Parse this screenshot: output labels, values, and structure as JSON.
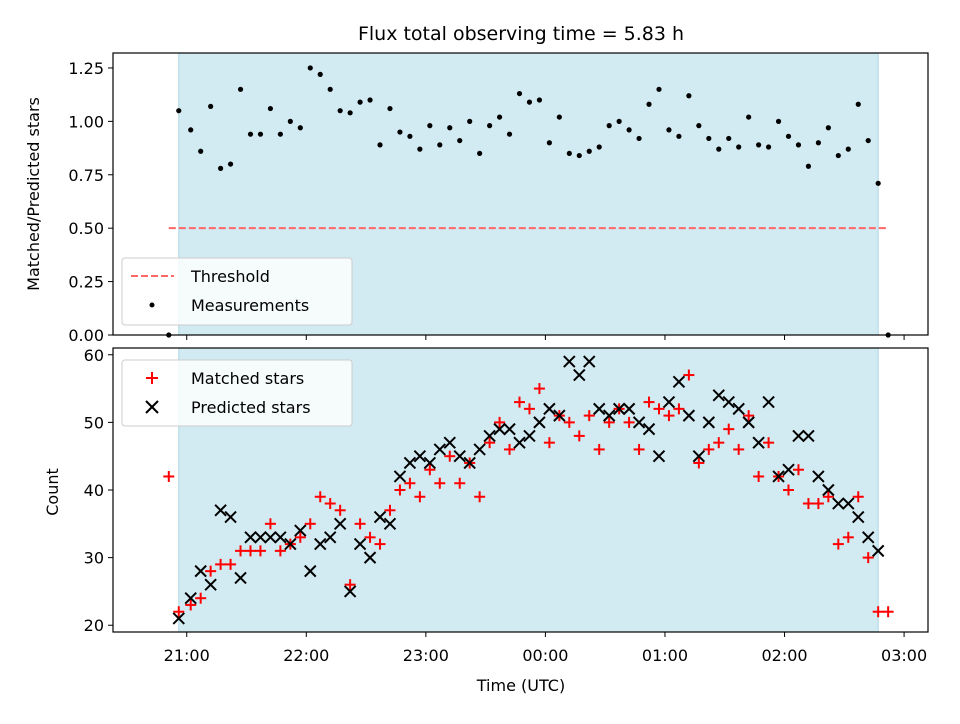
{
  "title": "Flux total observing time = 5.83 h",
  "colors": {
    "observing_band": "#add8e6",
    "threshold": "#ff6666",
    "measurements": "#000000",
    "matched": "#ff0000",
    "predicted": "#000000"
  },
  "chart_data": [
    {
      "type": "scatter",
      "panel": "top",
      "title": "Flux total observing time = 5.83 h",
      "xlabel": "",
      "ylabel": "Matched/Predicted stars",
      "xlim": [
        "20:23",
        "03:12"
      ],
      "ylim": [
        0,
        1.32
      ],
      "x_ticks": [
        "21:00",
        "22:00",
        "23:00",
        "00:00",
        "01:00",
        "02:00",
        "03:00"
      ],
      "y_ticks": [
        "0.00",
        "0.25",
        "0.50",
        "0.75",
        "1.00",
        "1.25"
      ],
      "observing_band": [
        "20:56",
        "02:47"
      ],
      "threshold": {
        "name": "Threshold",
        "y": 0.5,
        "x_range": [
          "20:51",
          "02:52"
        ]
      },
      "legend": {
        "placement": "lower-left",
        "entries": [
          "Threshold",
          "Measurements"
        ]
      },
      "series": [
        {
          "name": "Measurements",
          "marker": "dot",
          "points": [
            [
              "20:51",
              0.0
            ],
            [
              "20:56",
              1.05
            ],
            [
              "21:02",
              0.96
            ],
            [
              "21:07",
              0.86
            ],
            [
              "21:12",
              1.07
            ],
            [
              "21:17",
              0.78
            ],
            [
              "21:22",
              0.8
            ],
            [
              "21:27",
              1.15
            ],
            [
              "21:32",
              0.94
            ],
            [
              "21:37",
              0.94
            ],
            [
              "21:42",
              1.06
            ],
            [
              "21:47",
              0.94
            ],
            [
              "21:52",
              1.0
            ],
            [
              "21:57",
              0.97
            ],
            [
              "22:02",
              1.25
            ],
            [
              "22:07",
              1.22
            ],
            [
              "22:12",
              1.15
            ],
            [
              "22:17",
              1.05
            ],
            [
              "22:22",
              1.04
            ],
            [
              "22:27",
              1.09
            ],
            [
              "22:32",
              1.1
            ],
            [
              "22:37",
              0.89
            ],
            [
              "22:42",
              1.06
            ],
            [
              "22:47",
              0.95
            ],
            [
              "22:52",
              0.93
            ],
            [
              "22:57",
              0.87
            ],
            [
              "23:02",
              0.98
            ],
            [
              "23:07",
              0.89
            ],
            [
              "23:12",
              0.97
            ],
            [
              "23:17",
              0.91
            ],
            [
              "23:22",
              1.0
            ],
            [
              "23:27",
              0.85
            ],
            [
              "23:32",
              0.98
            ],
            [
              "23:37",
              1.02
            ],
            [
              "23:42",
              0.94
            ],
            [
              "23:47",
              1.13
            ],
            [
              "23:52",
              1.09
            ],
            [
              "23:57",
              1.1
            ],
            [
              "00:02",
              0.9
            ],
            [
              "00:07",
              1.02
            ],
            [
              "00:12",
              0.85
            ],
            [
              "00:17",
              0.84
            ],
            [
              "00:22",
              0.86
            ],
            [
              "00:27",
              0.88
            ],
            [
              "00:32",
              0.98
            ],
            [
              "00:37",
              1.0
            ],
            [
              "00:42",
              0.96
            ],
            [
              "00:47",
              0.92
            ],
            [
              "00:52",
              1.08
            ],
            [
              "00:57",
              1.15
            ],
            [
              "01:02",
              0.96
            ],
            [
              "01:07",
              0.93
            ],
            [
              "01:12",
              1.12
            ],
            [
              "01:17",
              0.98
            ],
            [
              "01:22",
              0.92
            ],
            [
              "01:27",
              0.87
            ],
            [
              "01:32",
              0.92
            ],
            [
              "01:37",
              0.88
            ],
            [
              "01:42",
              1.02
            ],
            [
              "01:47",
              0.89
            ],
            [
              "01:52",
              0.88
            ],
            [
              "01:57",
              1.0
            ],
            [
              "02:02",
              0.93
            ],
            [
              "02:07",
              0.89
            ],
            [
              "02:12",
              0.79
            ],
            [
              "02:17",
              0.9
            ],
            [
              "02:22",
              0.97
            ],
            [
              "02:27",
              0.84
            ],
            [
              "02:32",
              0.87
            ],
            [
              "02:37",
              1.08
            ],
            [
              "02:42",
              0.91
            ],
            [
              "02:47",
              0.71
            ],
            [
              "02:52",
              0.0
            ]
          ]
        }
      ]
    },
    {
      "type": "scatter",
      "panel": "bottom",
      "xlabel": "Time (UTC)",
      "ylabel": "Count",
      "xlim": [
        "20:23",
        "03:12"
      ],
      "ylim": [
        19,
        61
      ],
      "x_ticks": [
        "21:00",
        "22:00",
        "23:00",
        "00:00",
        "01:00",
        "02:00",
        "03:00"
      ],
      "y_ticks": [
        "20",
        "30",
        "40",
        "50",
        "60"
      ],
      "observing_band": [
        "20:56",
        "02:47"
      ],
      "legend": {
        "placement": "top-left",
        "entries": [
          "Matched stars",
          "Predicted stars"
        ]
      },
      "series": [
        {
          "name": "Matched stars",
          "marker": "plus",
          "points": [
            [
              "20:51",
              42
            ],
            [
              "20:56",
              22
            ],
            [
              "21:02",
              23
            ],
            [
              "21:07",
              24
            ],
            [
              "21:12",
              28
            ],
            [
              "21:17",
              29
            ],
            [
              "21:22",
              29
            ],
            [
              "21:27",
              31
            ],
            [
              "21:32",
              31
            ],
            [
              "21:37",
              31
            ],
            [
              "21:42",
              35
            ],
            [
              "21:47",
              31
            ],
            [
              "21:52",
              32
            ],
            [
              "21:57",
              33
            ],
            [
              "22:02",
              35
            ],
            [
              "22:07",
              39
            ],
            [
              "22:12",
              38
            ],
            [
              "22:17",
              37
            ],
            [
              "22:22",
              26
            ],
            [
              "22:27",
              35
            ],
            [
              "22:32",
              33
            ],
            [
              "22:37",
              32
            ],
            [
              "22:42",
              37
            ],
            [
              "22:47",
              40
            ],
            [
              "22:52",
              41
            ],
            [
              "22:57",
              39
            ],
            [
              "23:02",
              43
            ],
            [
              "23:07",
              41
            ],
            [
              "23:12",
              45
            ],
            [
              "23:17",
              41
            ],
            [
              "23:22",
              44
            ],
            [
              "23:27",
              39
            ],
            [
              "23:32",
              47
            ],
            [
              "23:37",
              50
            ],
            [
              "23:42",
              46
            ],
            [
              "23:47",
              53
            ],
            [
              "23:52",
              52
            ],
            [
              "23:57",
              55
            ],
            [
              "00:02",
              47
            ],
            [
              "00:07",
              51
            ],
            [
              "00:12",
              50
            ],
            [
              "00:17",
              48
            ],
            [
              "00:22",
              51
            ],
            [
              "00:27",
              46
            ],
            [
              "00:32",
              50
            ],
            [
              "00:37",
              52
            ],
            [
              "00:42",
              50
            ],
            [
              "00:47",
              46
            ],
            [
              "00:52",
              53
            ],
            [
              "00:57",
              52
            ],
            [
              "01:02",
              51
            ],
            [
              "01:07",
              52
            ],
            [
              "01:12",
              57
            ],
            [
              "01:17",
              44
            ],
            [
              "01:22",
              46
            ],
            [
              "01:27",
              47
            ],
            [
              "01:32",
              49
            ],
            [
              "01:37",
              46
            ],
            [
              "01:42",
              51
            ],
            [
              "01:47",
              42
            ],
            [
              "01:52",
              47
            ],
            [
              "01:57",
              42
            ],
            [
              "02:02",
              40
            ],
            [
              "02:07",
              43
            ],
            [
              "02:12",
              38
            ],
            [
              "02:17",
              38
            ],
            [
              "02:22",
              39
            ],
            [
              "02:27",
              32
            ],
            [
              "02:32",
              33
            ],
            [
              "02:37",
              39
            ],
            [
              "02:42",
              30
            ],
            [
              "02:47",
              22
            ],
            [
              "02:52",
              22
            ]
          ]
        },
        {
          "name": "Predicted stars",
          "marker": "x",
          "points": [
            [
              "20:56",
              21
            ],
            [
              "21:02",
              24
            ],
            [
              "21:07",
              28
            ],
            [
              "21:12",
              26
            ],
            [
              "21:17",
              37
            ],
            [
              "21:22",
              36
            ],
            [
              "21:27",
              27
            ],
            [
              "21:32",
              33
            ],
            [
              "21:37",
              33
            ],
            [
              "21:42",
              33
            ],
            [
              "21:47",
              33
            ],
            [
              "21:52",
              32
            ],
            [
              "21:57",
              34
            ],
            [
              "22:02",
              28
            ],
            [
              "22:07",
              32
            ],
            [
              "22:12",
              33
            ],
            [
              "22:17",
              35
            ],
            [
              "22:22",
              25
            ],
            [
              "22:27",
              32
            ],
            [
              "22:32",
              30
            ],
            [
              "22:37",
              36
            ],
            [
              "22:42",
              35
            ],
            [
              "22:47",
              42
            ],
            [
              "22:52",
              44
            ],
            [
              "22:57",
              45
            ],
            [
              "23:02",
              44
            ],
            [
              "23:07",
              46
            ],
            [
              "23:12",
              47
            ],
            [
              "23:17",
              45
            ],
            [
              "23:22",
              44
            ],
            [
              "23:27",
              46
            ],
            [
              "23:32",
              48
            ],
            [
              "23:37",
              49
            ],
            [
              "23:42",
              49
            ],
            [
              "23:47",
              47
            ],
            [
              "23:52",
              48
            ],
            [
              "23:57",
              50
            ],
            [
              "00:02",
              52
            ],
            [
              "00:07",
              51
            ],
            [
              "00:12",
              59
            ],
            [
              "00:17",
              57
            ],
            [
              "00:22",
              59
            ],
            [
              "00:27",
              52
            ],
            [
              "00:32",
              51
            ],
            [
              "00:37",
              52
            ],
            [
              "00:42",
              52
            ],
            [
              "00:47",
              50
            ],
            [
              "00:52",
              49
            ],
            [
              "00:57",
              45
            ],
            [
              "01:02",
              53
            ],
            [
              "01:07",
              56
            ],
            [
              "01:12",
              51
            ],
            [
              "01:17",
              45
            ],
            [
              "01:22",
              50
            ],
            [
              "01:27",
              54
            ],
            [
              "01:32",
              53
            ],
            [
              "01:37",
              52
            ],
            [
              "01:42",
              50
            ],
            [
              "01:47",
              47
            ],
            [
              "01:52",
              53
            ],
            [
              "01:57",
              42
            ],
            [
              "02:02",
              43
            ],
            [
              "02:07",
              48
            ],
            [
              "02:12",
              48
            ],
            [
              "02:17",
              42
            ],
            [
              "02:22",
              40
            ],
            [
              "02:27",
              38
            ],
            [
              "02:32",
              38
            ],
            [
              "02:37",
              36
            ],
            [
              "02:42",
              33
            ],
            [
              "02:47",
              31
            ]
          ]
        }
      ]
    }
  ]
}
